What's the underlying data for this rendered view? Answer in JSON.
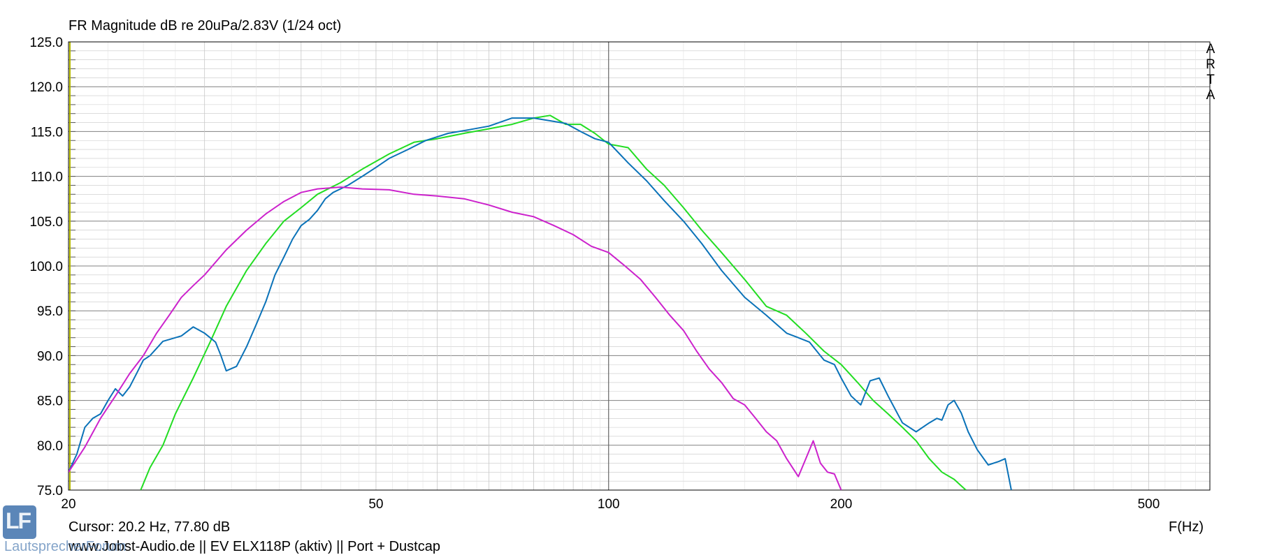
{
  "title": "FR Magnitude dB re 20uPa/2.83V (1/24 oct)",
  "cursor": "Cursor: 20.2 Hz, 77.80 dB",
  "footer": "www.Jobst-Audio.de  ||  EV ELX118P (aktiv)  ||  Port + Dustcap",
  "xaxis_unit": "F(Hz)",
  "arta": "ARTA",
  "watermark": "LautsprecherForum",
  "logo_letters": "LF",
  "colors": {
    "green": "#22dd22",
    "blue": "#0a72b8",
    "magenta": "#cc22cc",
    "grid": "#c8c8c8",
    "grid_major": "#808080",
    "tick_color": "#b5b800"
  },
  "chart_data": {
    "type": "line",
    "title": "FR Magnitude dB re 20uPa/2.83V (1/24 oct)",
    "xlabel": "F(Hz)",
    "ylabel": "",
    "xscale": "log",
    "xlim": [
      20,
      600
    ],
    "ylim": [
      75,
      125
    ],
    "x_ticks": [
      20,
      50,
      100,
      200,
      500
    ],
    "y_ticks": [
      75.0,
      80.0,
      85.0,
      90.0,
      95.0,
      100.0,
      105.0,
      110.0,
      115.0,
      120.0,
      125.0
    ],
    "y_tick_labels": [
      "75.0",
      "80.0",
      "85.0",
      "90.0",
      "95.0",
      "100.0",
      "105.0",
      "110.0",
      "115.0",
      "120.0",
      "125.0"
    ],
    "grid": true,
    "series": [
      {
        "color": "green",
        "x": [
          24.8,
          25.5,
          26.5,
          27.5,
          29,
          30.5,
          32,
          34,
          36,
          38,
          40,
          42,
          45,
          48,
          52,
          56,
          60,
          65,
          70,
          75,
          80,
          84,
          88,
          92,
          96,
          100,
          106,
          112,
          118,
          125,
          132,
          140,
          150,
          160,
          170,
          180,
          190,
          200,
          210,
          220,
          230,
          240,
          250,
          260,
          270,
          280,
          290
        ],
        "y": [
          75,
          77.5,
          80,
          83.5,
          87.5,
          91.5,
          95.5,
          99.5,
          102.5,
          105,
          106.5,
          108,
          109.3,
          110.8,
          112.5,
          113.8,
          114.2,
          114.8,
          115.3,
          115.8,
          116.5,
          116.8,
          115.8,
          115.8,
          114.8,
          113.6,
          113.2,
          110.8,
          109,
          106.5,
          104,
          101.5,
          98.5,
          95.5,
          94.5,
          92.5,
          90.5,
          89,
          87,
          85,
          83.5,
          82,
          80.5,
          78.5,
          77,
          76.2,
          75
        ]
      },
      {
        "color": "blue",
        "x": [
          20,
          20.5,
          21,
          21.5,
          22,
          22.5,
          23,
          23.5,
          24,
          24.5,
          25,
          25.5,
          26,
          26.5,
          27,
          28,
          29,
          30,
          30.5,
          31,
          31.5,
          32,
          33,
          34,
          35,
          36,
          37,
          38,
          39,
          40,
          41,
          42,
          43,
          44,
          46,
          48,
          50,
          52,
          55,
          58,
          62,
          66,
          70,
          75,
          80,
          84,
          88,
          92,
          96,
          100,
          106,
          112,
          118,
          125,
          132,
          140,
          150,
          160,
          170,
          176,
          182,
          190,
          196,
          200,
          206,
          212,
          218,
          224,
          230,
          240,
          250,
          260,
          266,
          270,
          275,
          280,
          286,
          292,
          300,
          310,
          320,
          326,
          332
        ],
        "y": [
          77,
          79,
          82,
          83,
          83.5,
          85,
          86.3,
          85.5,
          86.5,
          88,
          89.5,
          90,
          90.8,
          91.6,
          91.8,
          92.2,
          93.2,
          92.5,
          92,
          91.5,
          90,
          88.3,
          88.8,
          91,
          93.5,
          96,
          99,
          101,
          103,
          104.5,
          105.2,
          106.2,
          107.5,
          108.2,
          109,
          110,
          111,
          112,
          113,
          114,
          114.8,
          115.2,
          115.6,
          116.5,
          116.5,
          116.2,
          115.9,
          115,
          114.2,
          113.8,
          111.5,
          109.5,
          107.3,
          105,
          102.5,
          99.5,
          96.5,
          94.5,
          92.5,
          92,
          91.5,
          89.5,
          89,
          87.5,
          85.5,
          84.5,
          87.2,
          87.5,
          85.5,
          82.5,
          81.5,
          82.5,
          83,
          82.8,
          84.5,
          85,
          83.6,
          81.5,
          79.5,
          77.8,
          78.2,
          78.5,
          75
        ]
      },
      {
        "color": "magenta",
        "x": [
          20,
          21,
          22,
          23,
          24,
          25,
          26,
          27,
          28,
          29,
          30,
          32,
          34,
          36,
          38,
          40,
          42,
          45,
          48,
          52,
          56,
          60,
          65,
          70,
          75,
          80,
          85,
          90,
          95,
          100,
          105,
          110,
          115,
          120,
          125,
          130,
          135,
          140,
          145,
          150,
          155,
          160,
          165,
          170,
          173,
          176,
          180,
          184,
          188,
          192,
          196,
          200
        ],
        "y": [
          77,
          79.8,
          83,
          85.5,
          88,
          90,
          92.5,
          94.5,
          96.5,
          97.8,
          99,
          101.8,
          104,
          105.8,
          107.2,
          108.2,
          108.6,
          108.8,
          108.6,
          108.5,
          108,
          107.8,
          107.5,
          106.8,
          106,
          105.5,
          104.5,
          103.5,
          102.2,
          101.5,
          100,
          98.5,
          96.5,
          94.5,
          92.8,
          90.5,
          88.5,
          87,
          85.2,
          84.5,
          83,
          81.5,
          80.5,
          78.5,
          77.5,
          76.5,
          78.5,
          80.5,
          78,
          77,
          76.8,
          75
        ]
      }
    ]
  }
}
